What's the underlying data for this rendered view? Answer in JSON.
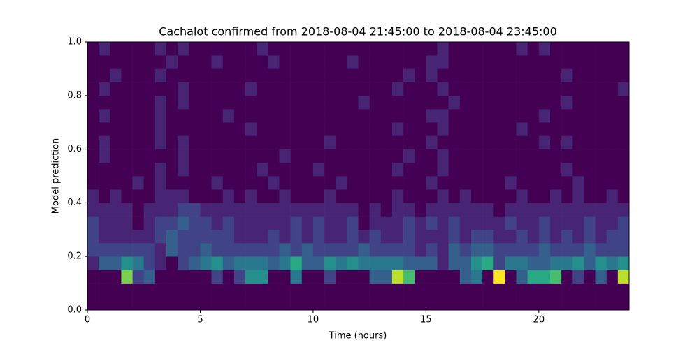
{
  "chart_data": {
    "type": "heatmap",
    "title": "Cachalot confirmed from 2018-08-04 21:45:00 to 2018-08-04 23:45:00",
    "xlabel": "Time (hours)",
    "ylabel": "Model prediction",
    "colormap": "viridis",
    "xlim": [
      0,
      24
    ],
    "ylim": [
      0,
      1
    ],
    "xticks": [
      0,
      5,
      10,
      15,
      20
    ],
    "yticks": [
      {
        "value": 0,
        "label": "0.0"
      },
      0.2,
      0.4,
      0.6,
      0.8,
      {
        "value": 1,
        "label": "1.0"
      }
    ],
    "xbins": [
      0,
      0.5,
      1,
      1.5,
      2,
      2.5,
      3,
      3.5,
      4,
      4.5,
      5,
      5.5,
      6,
      6.5,
      7,
      7.5,
      8,
      8.5,
      9,
      9.5,
      10,
      10.5,
      11,
      11.5,
      12,
      12.5,
      13,
      13.5,
      14,
      14.5,
      15,
      15.5,
      16,
      16.5,
      17,
      17.5,
      18,
      18.5,
      19,
      19.5,
      20,
      20.5,
      21,
      21.5,
      22,
      22.5,
      23,
      23.5,
      24
    ],
    "ybins": [
      0,
      0.05,
      0.1,
      0.15,
      0.2,
      0.25,
      0.3,
      0.35,
      0.4,
      0.45,
      0.5,
      0.55,
      0.6,
      0.65,
      0.7,
      0.75,
      0.8,
      0.85,
      0.9,
      0.95,
      1
    ],
    "z": [
      [
        0,
        0,
        0,
        0,
        0,
        0,
        0,
        0,
        0,
        0,
        0,
        0,
        0,
        0,
        0,
        0,
        0,
        0,
        0,
        0,
        0,
        0,
        0,
        0,
        0,
        0,
        0,
        0,
        0,
        0,
        0,
        0,
        0,
        0,
        0,
        0,
        0,
        0,
        0,
        0,
        0,
        0,
        0,
        0,
        0,
        0,
        0,
        0
      ],
      [
        0,
        0,
        0,
        0,
        0,
        0,
        0,
        0,
        0,
        0,
        0,
        0,
        0,
        0,
        0,
        0,
        0,
        0,
        0,
        0,
        0,
        0,
        0,
        0,
        0,
        0,
        0,
        0,
        0,
        0,
        0,
        0,
        0,
        0,
        0,
        0,
        0,
        0,
        0,
        0,
        0,
        0,
        0,
        0,
        0,
        0,
        0,
        0
      ],
      [
        0,
        0,
        0,
        8,
        2,
        3,
        0,
        0,
        0,
        0,
        0,
        2,
        0,
        2,
        5,
        5,
        0,
        0,
        4,
        0,
        0,
        2,
        0,
        0,
        0,
        3,
        3,
        9,
        7,
        0,
        0,
        0,
        0,
        3,
        4,
        0,
        10,
        0,
        3,
        6,
        6,
        7,
        0,
        2,
        0,
        3,
        0,
        9
      ],
      [
        1,
        3,
        3,
        5,
        4,
        2,
        1,
        0,
        2,
        3,
        4,
        5,
        3,
        4,
        4,
        4,
        3,
        4,
        6,
        3,
        3,
        5,
        4,
        5,
        4,
        4,
        4,
        4,
        3,
        3,
        3,
        1,
        3,
        3,
        5,
        6,
        2,
        4,
        4,
        3,
        3,
        4,
        4,
        5,
        3,
        5,
        4,
        5
      ],
      [
        2,
        2,
        2,
        2,
        2,
        2,
        1,
        3,
        2,
        2,
        3,
        2,
        2,
        2,
        2,
        2,
        2,
        3,
        2,
        3,
        2,
        2,
        2,
        2,
        3,
        2,
        2,
        2,
        2,
        1,
        2,
        1,
        3,
        2,
        3,
        3,
        2,
        2,
        2,
        2,
        3,
        2,
        2,
        2,
        3,
        2,
        2,
        2
      ],
      [
        2,
        1,
        1,
        1,
        1,
        1,
        2,
        3,
        2,
        2,
        2,
        2,
        2,
        1,
        1,
        1,
        2,
        1,
        2,
        1,
        2,
        1,
        1,
        2,
        1,
        2,
        1,
        1,
        2,
        1,
        1,
        1,
        2,
        1,
        2,
        2,
        1,
        1,
        2,
        1,
        2,
        1,
        2,
        1,
        2,
        1,
        2,
        2
      ],
      [
        2,
        1,
        1,
        1,
        0,
        1,
        2,
        2,
        3,
        2,
        2,
        1,
        2,
        1,
        1,
        1,
        1,
        1,
        2,
        1,
        2,
        1,
        1,
        2,
        0,
        1,
        1,
        1,
        2,
        1,
        2,
        1,
        2,
        1,
        1,
        1,
        1,
        2,
        1,
        1,
        2,
        1,
        1,
        1,
        2,
        1,
        1,
        2
      ],
      [
        1,
        1,
        1,
        1,
        0,
        1,
        1,
        1,
        2,
        2,
        1,
        1,
        1,
        1,
        1,
        1,
        1,
        1,
        1,
        1,
        1,
        1,
        1,
        1,
        0,
        1,
        0,
        1,
        1,
        0,
        1,
        1,
        1,
        1,
        1,
        1,
        0,
        1,
        1,
        1,
        1,
        1,
        1,
        1,
        1,
        1,
        1,
        1
      ],
      [
        1,
        0,
        1,
        0,
        0,
        0,
        1,
        1,
        1,
        0,
        0,
        0,
        1,
        0,
        1,
        0,
        0,
        1,
        0,
        0,
        0,
        1,
        0,
        0,
        0,
        0,
        0,
        1,
        0,
        0,
        0,
        1,
        0,
        1,
        0,
        0,
        0,
        0,
        1,
        0,
        0,
        1,
        0,
        1,
        0,
        0,
        1,
        0
      ],
      [
        0,
        0,
        0,
        0,
        1,
        0,
        1,
        0,
        0,
        0,
        0,
        1,
        0,
        0,
        0,
        0,
        1,
        0,
        0,
        0,
        0,
        0,
        1,
        0,
        0,
        0,
        0,
        0,
        0,
        0,
        1,
        0,
        0,
        0,
        0,
        0,
        0,
        1,
        0,
        0,
        0,
        0,
        0,
        1,
        0,
        0,
        0,
        0
      ],
      [
        0,
        0,
        0,
        0,
        0,
        0,
        1,
        0,
        1,
        0,
        0,
        0,
        0,
        0,
        0,
        1,
        0,
        0,
        0,
        0,
        1,
        0,
        0,
        0,
        0,
        0,
        0,
        1,
        0,
        0,
        0,
        1,
        0,
        0,
        0,
        0,
        0,
        0,
        0,
        0,
        0,
        0,
        1,
        0,
        0,
        0,
        0,
        0
      ],
      [
        0,
        1,
        0,
        0,
        0,
        0,
        0,
        0,
        1,
        0,
        0,
        0,
        0,
        0,
        0,
        0,
        0,
        1,
        0,
        0,
        0,
        0,
        0,
        0,
        0,
        0,
        0,
        0,
        1,
        0,
        0,
        1,
        0,
        0,
        0,
        0,
        0,
        0,
        0,
        0,
        0,
        0,
        0,
        0,
        0,
        0,
        0,
        0
      ],
      [
        0,
        1,
        0,
        0,
        0,
        0,
        1,
        0,
        1,
        0,
        0,
        0,
        0,
        0,
        0,
        0,
        0,
        0,
        0,
        0,
        0,
        1,
        0,
        0,
        0,
        0,
        0,
        0,
        0,
        0,
        1,
        0,
        0,
        0,
        0,
        0,
        0,
        0,
        0,
        0,
        1,
        0,
        1,
        0,
        0,
        0,
        0,
        0
      ],
      [
        0,
        0,
        0,
        0,
        0,
        0,
        1,
        0,
        0,
        0,
        0,
        0,
        0,
        0,
        1,
        0,
        0,
        0,
        0,
        0,
        0,
        0,
        0,
        0,
        0,
        0,
        0,
        1,
        0,
        0,
        0,
        1,
        0,
        0,
        0,
        0,
        0,
        0,
        1,
        0,
        0,
        0,
        0,
        0,
        0,
        0,
        0,
        0
      ],
      [
        0,
        1,
        0,
        0,
        0,
        0,
        1,
        0,
        0,
        0,
        0,
        0,
        1,
        0,
        0,
        0,
        0,
        0,
        0,
        0,
        0,
        0,
        0,
        0,
        0,
        0,
        0,
        0,
        0,
        0,
        1,
        1,
        0,
        0,
        0,
        0,
        0,
        0,
        0,
        0,
        1,
        0,
        0,
        0,
        0,
        0,
        0,
        0
      ],
      [
        0,
        0,
        0,
        0,
        0,
        0,
        1,
        0,
        1,
        0,
        0,
        0,
        0,
        0,
        0,
        0,
        0,
        0,
        0,
        0,
        0,
        0,
        0,
        0,
        1,
        0,
        0,
        0,
        0,
        0,
        0,
        0,
        1,
        0,
        0,
        0,
        0,
        0,
        0,
        0,
        0,
        0,
        1,
        0,
        0,
        0,
        0,
        0
      ],
      [
        0,
        1,
        0,
        0,
        0,
        0,
        0,
        0,
        1,
        0,
        0,
        0,
        0,
        0,
        1,
        0,
        0,
        0,
        0,
        0,
        0,
        0,
        0,
        0,
        0,
        0,
        0,
        1,
        0,
        0,
        0,
        1,
        0,
        0,
        0,
        0,
        0,
        0,
        0,
        0,
        0,
        0,
        0,
        0,
        0,
        0,
        0,
        1
      ],
      [
        0,
        0,
        1,
        0,
        0,
        0,
        1,
        0,
        0,
        0,
        0,
        0,
        0,
        0,
        0,
        0,
        0,
        0,
        0,
        0,
        0,
        0,
        0,
        0,
        0,
        0,
        0,
        0,
        1,
        0,
        1,
        0,
        0,
        0,
        0,
        0,
        0,
        0,
        0,
        0,
        0,
        0,
        1,
        0,
        0,
        0,
        0,
        0
      ],
      [
        0,
        0,
        0,
        0,
        0,
        0,
        0,
        1,
        0,
        0,
        0,
        1,
        0,
        0,
        0,
        0,
        1,
        0,
        0,
        0,
        0,
        0,
        0,
        1,
        0,
        0,
        0,
        0,
        0,
        0,
        1,
        1,
        0,
        0,
        0,
        0,
        0,
        0,
        0,
        0,
        0,
        0,
        0,
        0,
        0,
        0,
        0,
        0
      ],
      [
        0,
        1,
        0,
        0,
        0,
        0,
        1,
        0,
        1,
        0,
        0,
        0,
        0,
        0,
        0,
        1,
        0,
        0,
        0,
        0,
        0,
        0,
        0,
        0,
        0,
        0,
        0,
        0,
        0,
        0,
        0,
        1,
        0,
        0,
        0,
        0,
        0,
        0,
        1,
        0,
        1,
        0,
        0,
        0,
        0,
        0,
        0,
        0
      ]
    ]
  }
}
